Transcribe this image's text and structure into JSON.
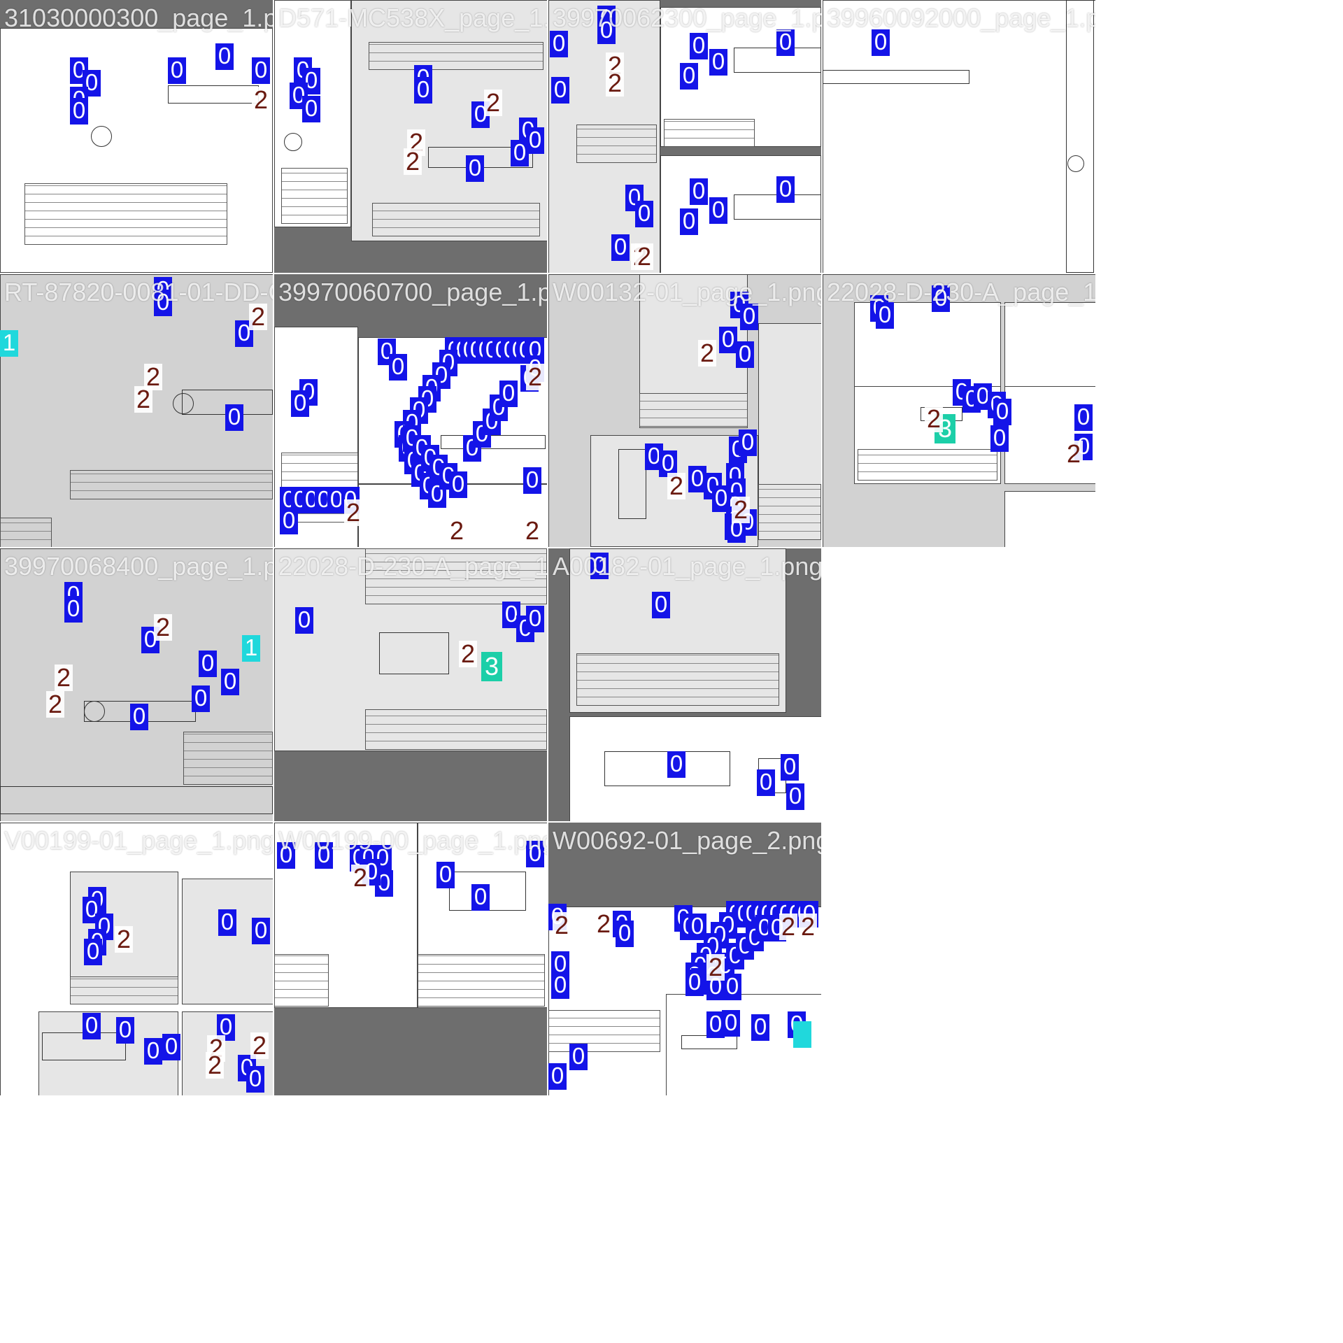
{
  "tiles": [
    {
      "filename": "31030000300_page_1.png",
      "labels": [
        {
          "c": 0,
          "t": "0"
        },
        {
          "c": 0,
          "t": "0"
        },
        {
          "c": 0,
          "t": "0"
        },
        {
          "c": 0,
          "t": "0"
        },
        {
          "c": 0,
          "t": "0"
        },
        {
          "c": 0,
          "t": "0"
        },
        {
          "c": 0,
          "t": "0"
        },
        {
          "c": 0,
          "t": "0"
        },
        {
          "c": 2,
          "t": "2"
        }
      ]
    },
    {
      "filename": "D571-MC538X_page_1.png",
      "labels": [
        {
          "c": 0,
          "t": "0"
        },
        {
          "c": 0,
          "t": "0"
        },
        {
          "c": 0,
          "t": "0"
        },
        {
          "c": 0,
          "t": "0"
        },
        {
          "c": 0,
          "t": "0"
        },
        {
          "c": 0,
          "t": "0"
        },
        {
          "c": 0,
          "t": "0"
        },
        {
          "c": 0,
          "t": "0"
        },
        {
          "c": 0,
          "t": "0"
        },
        {
          "c": 0,
          "t": "0"
        },
        {
          "c": 0,
          "t": "0"
        },
        {
          "c": 2,
          "t": "2"
        },
        {
          "c": 2,
          "t": "2"
        },
        {
          "c": 2,
          "t": "2"
        }
      ]
    },
    {
      "filename": "39970062300_page_1.png",
      "labels": [
        {
          "c": 0,
          "t": "0"
        },
        {
          "c": 0,
          "t": "0"
        },
        {
          "c": 0,
          "t": "0"
        },
        {
          "c": 0,
          "t": "0"
        },
        {
          "c": 0,
          "t": "0"
        },
        {
          "c": 0,
          "t": "0"
        },
        {
          "c": 0,
          "t": "0"
        },
        {
          "c": 0,
          "t": "0"
        },
        {
          "c": 0,
          "t": "0"
        },
        {
          "c": 0,
          "t": "0"
        },
        {
          "c": 0,
          "t": "0"
        },
        {
          "c": 0,
          "t": "0"
        },
        {
          "c": 0,
          "t": "0"
        },
        {
          "c": 0,
          "t": "0"
        },
        {
          "c": 0,
          "t": "0"
        },
        {
          "c": 2,
          "t": "2"
        },
        {
          "c": 2,
          "t": "2"
        },
        {
          "c": 2,
          "t": "2"
        },
        {
          "c": 2,
          "t": "2"
        }
      ]
    },
    {
      "filename": "39960092000_page_1.png",
      "labels": [
        {
          "c": 0,
          "t": "0"
        }
      ]
    },
    {
      "filename": "RT-87820-0081-01-DD-C_page_1.png",
      "labels": [
        {
          "c": 0,
          "t": "0"
        },
        {
          "c": 0,
          "t": "0"
        },
        {
          "c": 0,
          "t": "0"
        },
        {
          "c": 0,
          "t": "0"
        },
        {
          "c": 1,
          "t": "1"
        },
        {
          "c": 2,
          "t": "2"
        },
        {
          "c": 2,
          "t": "2"
        },
        {
          "c": 2,
          "t": "2"
        }
      ]
    },
    {
      "filename": "39970060700_page_1.png",
      "labels": [
        {
          "c": 0,
          "t": "0"
        },
        {
          "c": 0,
          "t": "0"
        },
        {
          "c": 0,
          "t": "0"
        },
        {
          "c": 0,
          "t": "0"
        },
        {
          "c": 0,
          "t": "0"
        },
        {
          "c": 0,
          "t": "0"
        },
        {
          "c": 0,
          "t": "0"
        },
        {
          "c": 0,
          "t": "0"
        },
        {
          "c": 0,
          "t": "0"
        },
        {
          "c": 0,
          "t": "0"
        },
        {
          "c": 0,
          "t": "0"
        },
        {
          "c": 0,
          "t": "0"
        },
        {
          "c": 0,
          "t": "0"
        },
        {
          "c": 0,
          "t": "0"
        },
        {
          "c": 0,
          "t": "0"
        },
        {
          "c": 0,
          "t": "0"
        },
        {
          "c": 0,
          "t": "0"
        },
        {
          "c": 0,
          "t": "0"
        },
        {
          "c": 0,
          "t": "0"
        },
        {
          "c": 0,
          "t": "0"
        },
        {
          "c": 0,
          "t": "0"
        },
        {
          "c": 0,
          "t": "0"
        },
        {
          "c": 0,
          "t": "0"
        },
        {
          "c": 0,
          "t": "0"
        },
        {
          "c": 0,
          "t": "0"
        },
        {
          "c": 0,
          "t": "0"
        },
        {
          "c": 0,
          "t": "0"
        },
        {
          "c": 0,
          "t": "0"
        },
        {
          "c": 0,
          "t": "0"
        },
        {
          "c": 0,
          "t": "0"
        },
        {
          "c": 0,
          "t": "0"
        },
        {
          "c": 0,
          "t": "0"
        },
        {
          "c": 0,
          "t": "0"
        },
        {
          "c": 0,
          "t": "0"
        },
        {
          "c": 0,
          "t": "0"
        },
        {
          "c": 0,
          "t": "0"
        },
        {
          "c": 0,
          "t": "0"
        },
        {
          "c": 0,
          "t": "0"
        },
        {
          "c": 0,
          "t": "0"
        },
        {
          "c": 0,
          "t": "0"
        },
        {
          "c": 0,
          "t": "0"
        },
        {
          "c": 0,
          "t": "0"
        },
        {
          "c": 0,
          "t": "0"
        },
        {
          "c": 0,
          "t": "0"
        },
        {
          "c": 0,
          "t": "0"
        },
        {
          "c": 0,
          "t": "0"
        },
        {
          "c": 0,
          "t": "0"
        },
        {
          "c": 0,
          "t": "0"
        },
        {
          "c": 0,
          "t": "0"
        },
        {
          "c": 0,
          "t": "0"
        },
        {
          "c": 2,
          "t": "2"
        },
        {
          "c": 2,
          "t": "2"
        },
        {
          "c": 2,
          "t": "2"
        },
        {
          "c": 2,
          "t": "2"
        }
      ]
    },
    {
      "filename": "W00132-01_page_1.png",
      "labels": [
        {
          "c": 0,
          "t": "0"
        },
        {
          "c": 0,
          "t": "0"
        },
        {
          "c": 0,
          "t": "0"
        },
        {
          "c": 0,
          "t": "0"
        },
        {
          "c": 0,
          "t": "0"
        },
        {
          "c": 0,
          "t": "0"
        },
        {
          "c": 0,
          "t": "0"
        },
        {
          "c": 0,
          "t": "0"
        },
        {
          "c": 0,
          "t": "0"
        },
        {
          "c": 0,
          "t": "0"
        },
        {
          "c": 0,
          "t": "0"
        },
        {
          "c": 0,
          "t": "0"
        },
        {
          "c": 0,
          "t": "0"
        },
        {
          "c": 0,
          "t": "0"
        },
        {
          "c": 0,
          "t": "0"
        },
        {
          "c": 0,
          "t": "0"
        },
        {
          "c": 0,
          "t": "0"
        },
        {
          "c": 0,
          "t": "0"
        },
        {
          "c": 2,
          "t": "2"
        },
        {
          "c": 2,
          "t": "2"
        },
        {
          "c": 2,
          "t": "2"
        }
      ]
    },
    {
      "filename": "22028-D-230-A_page_1.png",
      "labels": [
        {
          "c": 0,
          "t": "0"
        },
        {
          "c": 0,
          "t": "0"
        },
        {
          "c": 0,
          "t": "0"
        },
        {
          "c": 0,
          "t": "0"
        },
        {
          "c": 0,
          "t": "0"
        },
        {
          "c": 0,
          "t": "0"
        },
        {
          "c": 0,
          "t": "0"
        },
        {
          "c": 0,
          "t": "0"
        },
        {
          "c": 0,
          "t": "0"
        },
        {
          "c": 0,
          "t": "0"
        },
        {
          "c": 0,
          "t": "0"
        },
        {
          "c": 3,
          "t": "3"
        },
        {
          "c": 2,
          "t": "2"
        },
        {
          "c": 2,
          "t": "2"
        }
      ]
    },
    {
      "filename": "39970068400_page_1.png",
      "labels": [
        {
          "c": 0,
          "t": "0"
        },
        {
          "c": 0,
          "t": "0"
        },
        {
          "c": 0,
          "t": "0"
        },
        {
          "c": 0,
          "t": "0"
        },
        {
          "c": 0,
          "t": "0"
        },
        {
          "c": 0,
          "t": "0"
        },
        {
          "c": 0,
          "t": "0"
        },
        {
          "c": 1,
          "t": "1"
        },
        {
          "c": 2,
          "t": "2"
        },
        {
          "c": 2,
          "t": "2"
        },
        {
          "c": 2,
          "t": "2"
        }
      ]
    },
    {
      "filename": "22028-D-230-A_page_1.png",
      "labels": [
        {
          "c": 0,
          "t": "0"
        },
        {
          "c": 0,
          "t": "0"
        },
        {
          "c": 0,
          "t": "0"
        },
        {
          "c": 0,
          "t": "0"
        },
        {
          "c": 3,
          "t": "3"
        },
        {
          "c": 2,
          "t": "2"
        }
      ]
    },
    {
      "filename": "A00182-01_page_1.png",
      "labels": [
        {
          "c": 0,
          "t": "0"
        },
        {
          "c": 0,
          "t": "0"
        },
        {
          "c": 0,
          "t": "0"
        },
        {
          "c": 0,
          "t": "0"
        },
        {
          "c": 0,
          "t": "0"
        },
        {
          "c": 0,
          "t": "0"
        }
      ]
    },
    {
      "filename": "",
      "labels": []
    },
    {
      "filename": "V00199-01_page_1.png",
      "labels": [
        {
          "c": 0,
          "t": "0"
        },
        {
          "c": 0,
          "t": "0"
        },
        {
          "c": 0,
          "t": "0"
        },
        {
          "c": 0,
          "t": "0"
        },
        {
          "c": 0,
          "t": "0"
        },
        {
          "c": 0,
          "t": "0"
        },
        {
          "c": 0,
          "t": "0"
        },
        {
          "c": 0,
          "t": "0"
        },
        {
          "c": 0,
          "t": "0"
        },
        {
          "c": 0,
          "t": "0"
        },
        {
          "c": 0,
          "t": "0"
        },
        {
          "c": 0,
          "t": "0"
        },
        {
          "c": 0,
          "t": "0"
        },
        {
          "c": 0,
          "t": "0"
        },
        {
          "c": 2,
          "t": "2"
        },
        {
          "c": 2,
          "t": "2"
        },
        {
          "c": 2,
          "t": "2"
        },
        {
          "c": 2,
          "t": "2"
        }
      ]
    },
    {
      "filename": "W00199-00_page_1.png",
      "labels": [
        {
          "c": 0,
          "t": "0"
        },
        {
          "c": 0,
          "t": "0"
        },
        {
          "c": 0,
          "t": "0"
        },
        {
          "c": 0,
          "t": "0"
        },
        {
          "c": 0,
          "t": "0"
        },
        {
          "c": 0,
          "t": "0"
        },
        {
          "c": 0,
          "t": "0"
        },
        {
          "c": 0,
          "t": "0"
        },
        {
          "c": 0,
          "t": "0"
        },
        {
          "c": 0,
          "t": "0"
        },
        {
          "c": 2,
          "t": "2"
        }
      ]
    },
    {
      "filename": "W00692-01_page_2.png",
      "labels": [
        {
          "c": 0,
          "t": "0"
        },
        {
          "c": 0,
          "t": "0"
        },
        {
          "c": 0,
          "t": "0"
        },
        {
          "c": 0,
          "t": "0"
        },
        {
          "c": 0,
          "t": "0"
        },
        {
          "c": 0,
          "t": "0"
        },
        {
          "c": 0,
          "t": "0"
        },
        {
          "c": 0,
          "t": "0"
        },
        {
          "c": 0,
          "t": "0"
        },
        {
          "c": 0,
          "t": "0"
        },
        {
          "c": 0,
          "t": "0"
        },
        {
          "c": 0,
          "t": "0"
        },
        {
          "c": 0,
          "t": "0"
        },
        {
          "c": 0,
          "t": "0"
        },
        {
          "c": 0,
          "t": "0"
        },
        {
          "c": 0,
          "t": "0"
        },
        {
          "c": 0,
          "t": "0"
        },
        {
          "c": 0,
          "t": "0"
        },
        {
          "c": 0,
          "t": "0"
        },
        {
          "c": 0,
          "t": "0"
        },
        {
          "c": 0,
          "t": "0"
        },
        {
          "c": 0,
          "t": "0"
        },
        {
          "c": 0,
          "t": "0"
        },
        {
          "c": 0,
          "t": "0"
        },
        {
          "c": 0,
          "t": "0"
        },
        {
          "c": 0,
          "t": "0"
        },
        {
          "c": 0,
          "t": "0"
        },
        {
          "c": 0,
          "t": "0"
        },
        {
          "c": 0,
          "t": "0"
        },
        {
          "c": 0,
          "t": "0"
        },
        {
          "c": 0,
          "t": "0"
        },
        {
          "c": 0,
          "t": "0"
        },
        {
          "c": 0,
          "t": "0"
        },
        {
          "c": 0,
          "t": "0"
        },
        {
          "c": 0,
          "t": "0"
        },
        {
          "c": 0,
          "t": "0"
        },
        {
          "c": 0,
          "t": "0"
        },
        {
          "c": 0,
          "t": "0"
        },
        {
          "c": 0,
          "t": "0"
        },
        {
          "c": 0,
          "t": "0"
        },
        {
          "c": 0,
          "t": "0"
        },
        {
          "c": 0,
          "t": "0"
        },
        {
          "c": 1,
          "t": ""
        },
        {
          "c": 2,
          "t": "2"
        },
        {
          "c": 2,
          "t": "2"
        },
        {
          "c": 2,
          "t": "2"
        },
        {
          "c": 2,
          "t": "2"
        },
        {
          "c": 2,
          "t": "2"
        }
      ]
    },
    {
      "filename": "",
      "labels": []
    }
  ],
  "colors": {
    "class0": "#1414e8",
    "class1": "#20d8dc",
    "class2": "#6a1a10",
    "class3": "#1ccfa8",
    "background": "#6e6e6e"
  }
}
